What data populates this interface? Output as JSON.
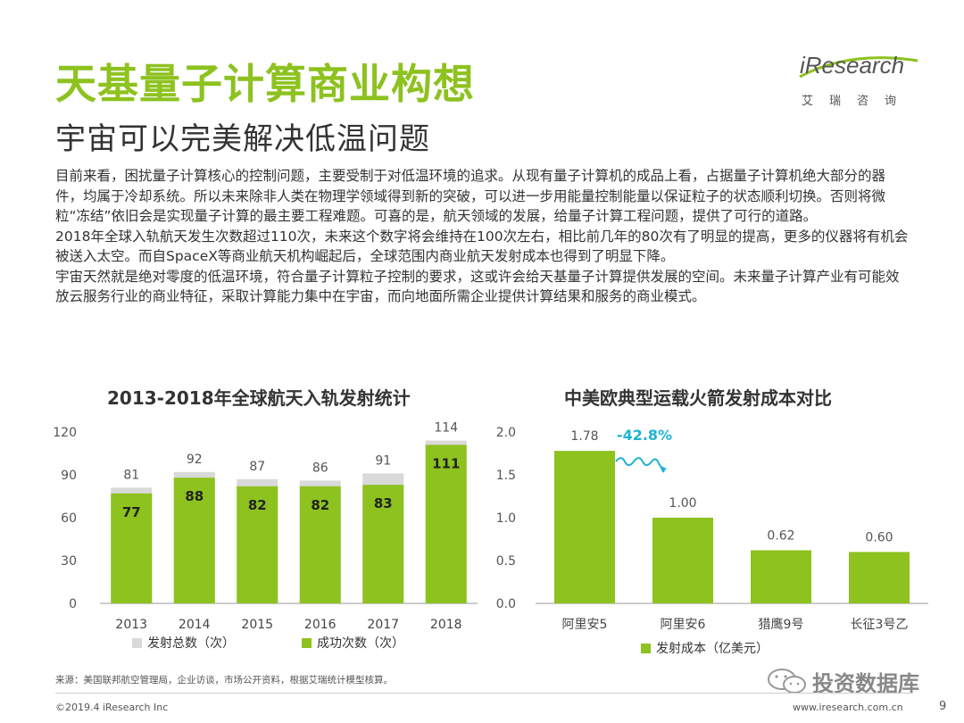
{
  "header": {
    "title": "天基量子计算商业构想",
    "subtitle": "宇宙可以完美解决低温问题",
    "logo_text": "iResearch",
    "logo_sub": "艾瑞咨询"
  },
  "paragraphs": [
    "目前来看，困扰量子计算核心的控制问题，主要受制于对低温环境的追求。从现有量子计算机的成品上看，占据量子计算机绝大部分的器件，均属于冷却系统。所以未来除非人类在物理学领域得到新的突破，可以进一步用能量控制能量以保证粒子的状态顺利切换。否则将微粒“冻结”依旧会是实现量子计算的最主要工程难题。可喜的是，航天领域的发展，给量子计算工程问题，提供了可行的道路。",
    "2018年全球入轨航天发生次数超过110次，未来这个数字将会维持在100次左右，相比前几年的80次有了明显的提高，更多的仪器将有机会被送入太空。而自SpaceX等商业航天机构崛起后，全球范围内商业航天发射成本也得到了明显下降。",
    "宇宙天然就是绝对零度的低温环境，符合量子计算粒子控制的要求，这或许会给天基量子计算提供发展的空间。未来量子计算产业有可能效放云服务行业的商业特征，采取计算能力集中在宇宙，而向地面所需企业提供计算结果和服务的商业模式。"
  ],
  "chart_data": [
    {
      "type": "bar",
      "title": "2013-2018年全球航天入轨发射统计",
      "categories": [
        "2013",
        "2014",
        "2015",
        "2016",
        "2017",
        "2018"
      ],
      "series": [
        {
          "name": "发射总数（次）",
          "values": [
            81,
            92,
            87,
            86,
            91,
            114
          ]
        },
        {
          "name": "成功次数（次）",
          "values": [
            77,
            88,
            82,
            82,
            83,
            111
          ]
        }
      ],
      "ylim": [
        0,
        120
      ],
      "yticks": [
        "0",
        "30",
        "60",
        "90",
        "120"
      ],
      "colors": {
        "total": "#D9D9D9",
        "success": "#8DC21F"
      }
    },
    {
      "type": "bar",
      "title": "中美欧典型运载火箭发射成本对比",
      "categories": [
        "阿里安5",
        "阿里安6",
        "猎鹰9号",
        "长征3号乙"
      ],
      "series": [
        {
          "name": "发射成本（亿美元）",
          "values": [
            1.78,
            1.0,
            0.62,
            0.6
          ]
        }
      ],
      "value_labels": [
        "1.78",
        "1.00",
        "0.62",
        "0.60"
      ],
      "ylim": [
        0,
        2.0
      ],
      "yticks": [
        "0.0",
        "0.5",
        "1.0",
        "1.5",
        "2.0"
      ],
      "annotation": "-42.8%",
      "colors": {
        "bar": "#8DC21F",
        "annotation": "#1EB4D2"
      }
    }
  ],
  "source": "来源：美国联邦航空管理局，企业访谈，市场公开资料，根据艾瑞统计模型核算。",
  "footer": {
    "copyright": "©2019.4 iResearch Inc",
    "website": "www.iresearch.com.cn",
    "page": "9",
    "watermark": "投资数据库"
  }
}
